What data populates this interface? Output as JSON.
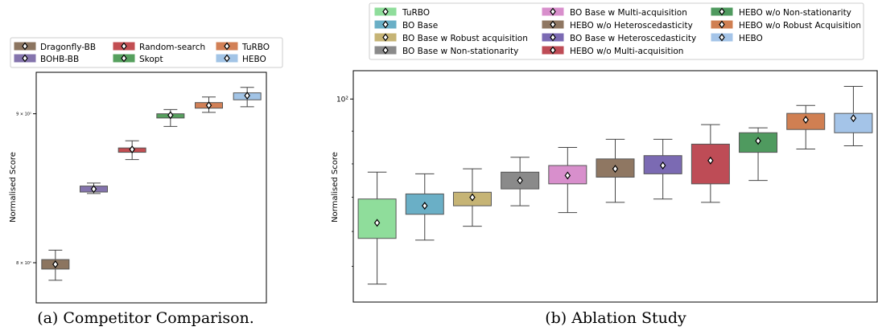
{
  "captions": {
    "left": "(a) Competitor Comparison.",
    "right": "(b) Ablation Study"
  },
  "chart_data": [
    {
      "type": "box",
      "title": "",
      "xlabel": "",
      "ylabel": "Normalised Score",
      "ytick_labels": [
        "8 × 10¹",
        "9 × 10¹"
      ],
      "yscale": "log",
      "legend_position": "top",
      "series": [
        {
          "name": "Dragonfly-BB",
          "color": "#8c7560",
          "min": 78.9,
          "q1": 79.6,
          "median": 79.9,
          "q3": 80.2,
          "max": 80.8
        },
        {
          "name": "BOHB-BB",
          "color": "#8474ad",
          "min": 84.5,
          "q1": 84.6,
          "median": 84.8,
          "q3": 85.0,
          "max": 85.2
        },
        {
          "name": "Random-search",
          "color": "#c24e52",
          "min": 86.8,
          "q1": 87.3,
          "median": 87.5,
          "q3": 87.6,
          "max": 88.1
        },
        {
          "name": "Skopt",
          "color": "#56a05e",
          "min": 89.1,
          "q1": 89.7,
          "median": 89.9,
          "q3": 90.0,
          "max": 90.3
        },
        {
          "name": "TuRBO",
          "color": "#d28056",
          "min": 90.1,
          "q1": 90.4,
          "median": 90.6,
          "q3": 90.8,
          "max": 91.2
        },
        {
          "name": "HEBO",
          "color": "#a2c4e6",
          "min": 90.5,
          "q1": 91.0,
          "median": 91.3,
          "q3": 91.5,
          "max": 91.9
        }
      ]
    },
    {
      "type": "box",
      "title": "",
      "xlabel": "",
      "ylabel": "Normalised Score",
      "ytick_labels": [
        "10²"
      ],
      "yscale": "log",
      "legend_position": "top",
      "series": [
        {
          "name": "TuRBO",
          "color": "#8fdd9b",
          "min": 89.0,
          "q1": 91.6,
          "median": 92.5,
          "q3": 93.9,
          "max": 95.5
        },
        {
          "name": "BO Base",
          "color": "#6aafc6",
          "min": 91.5,
          "q1": 93.0,
          "median": 93.5,
          "q3": 94.2,
          "max": 95.4
        },
        {
          "name": "BO Base w Robust acquisition",
          "color": "#c6b475",
          "min": 92.3,
          "q1": 93.5,
          "median": 94.0,
          "q3": 94.3,
          "max": 95.7
        },
        {
          "name": "BO Base w Non-stationarity",
          "color": "#8a8a8a",
          "min": 93.5,
          "q1": 94.5,
          "median": 95.0,
          "q3": 95.5,
          "max": 96.4
        },
        {
          "name": "BO Base w Multi-acquisition",
          "color": "#d88fcc",
          "min": 93.1,
          "q1": 94.8,
          "median": 95.3,
          "q3": 95.9,
          "max": 97.0
        },
        {
          "name": "HEBO w/o Heteroscedasticity",
          "color": "#8f7762",
          "min": 93.7,
          "q1": 95.2,
          "median": 95.7,
          "q3": 96.3,
          "max": 97.5
        },
        {
          "name": "BO Base w Heteroscedasticity",
          "color": "#7b6ab3",
          "min": 93.9,
          "q1": 95.4,
          "median": 95.9,
          "q3": 96.5,
          "max": 97.5
        },
        {
          "name": "HEBO w/o Multi-acquisition",
          "color": "#be4c56",
          "min": 93.7,
          "q1": 94.8,
          "median": 96.2,
          "q3": 97.2,
          "max": 98.4
        },
        {
          "name": "HEBO w/o Non-stationarity",
          "color": "#4f9a5f",
          "min": 95.0,
          "q1": 96.7,
          "median": 97.4,
          "q3": 97.9,
          "max": 98.2
        },
        {
          "name": "HEBO w/o Robust Acquisition",
          "color": "#d07f52",
          "min": 96.9,
          "q1": 98.1,
          "median": 98.7,
          "q3": 99.1,
          "max": 99.6
        },
        {
          "name": "HEBO",
          "color": "#a4c4e8",
          "min": 97.1,
          "q1": 97.9,
          "median": 98.8,
          "q3": 99.1,
          "max": 100.8
        }
      ]
    }
  ]
}
